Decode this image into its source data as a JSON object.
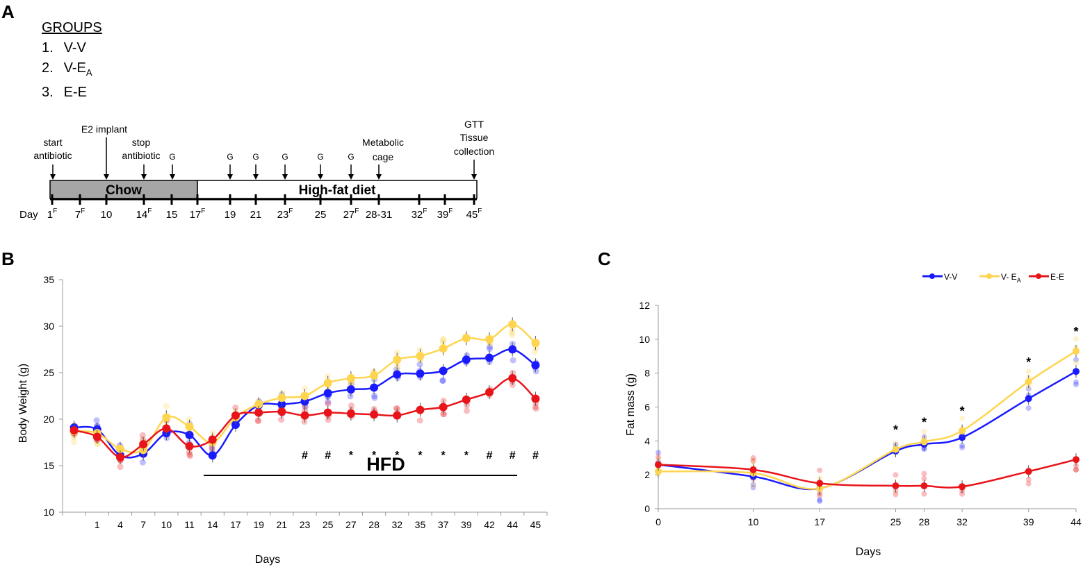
{
  "panels": {
    "a": "A",
    "b": "B",
    "c": "C"
  },
  "groups": {
    "header": "GROUPS",
    "items": [
      {
        "num": "1.",
        "label": "V-V"
      },
      {
        "num": "2.",
        "label": "V-E",
        "sub": "A"
      },
      {
        "num": "3.",
        "label": "E-E"
      }
    ]
  },
  "timeline": {
    "bar_labels": {
      "chow": "Chow",
      "hfd": "High-fat diet"
    },
    "day_prefix": "Day",
    "days": [
      {
        "d": "1",
        "f": true
      },
      {
        "d": "7",
        "f": true
      },
      {
        "d": "10",
        "f": false
      },
      {
        "d": "14",
        "f": true
      },
      {
        "d": "15",
        "f": false
      },
      {
        "d": "17",
        "f": true
      },
      {
        "d": "19",
        "f": false
      },
      {
        "d": "21",
        "f": false
      },
      {
        "d": "23",
        "f": true
      },
      {
        "d": "25",
        "f": false
      },
      {
        "d": "27",
        "f": true
      },
      {
        "d": "28-31",
        "f": false
      },
      {
        "d": "32",
        "f": true
      },
      {
        "d": "39",
        "f": true
      },
      {
        "d": "45",
        "f": true
      }
    ],
    "f_mark": "F",
    "events": {
      "start_antibiotic": [
        "start",
        "antibiotic"
      ],
      "e2_implant": [
        "E2 implant"
      ],
      "stop_antibiotic": [
        "stop",
        "antibiotic"
      ],
      "g": "G",
      "metabolic": [
        "Metabolic",
        "cage"
      ],
      "gtt": [
        "GTT",
        "Tissue",
        "collection"
      ]
    }
  },
  "chart_data": [
    {
      "type": "line",
      "id": "body-weight",
      "title": "",
      "xlabel": "Days",
      "ylabel": "Body Weight (g)",
      "ylim": [
        10,
        35
      ],
      "yticks": [
        10,
        15,
        20,
        25,
        30,
        35
      ],
      "categories": [
        "",
        "1",
        "4",
        "7",
        "10",
        "11",
        "14",
        "17",
        "19",
        "21",
        "23",
        "25",
        "27",
        "28",
        "32",
        "35",
        "37",
        "39",
        "42",
        "44",
        "45"
      ],
      "series": [
        {
          "name": "V-V",
          "color": "#1a1aff",
          "values": [
            19.1,
            18.9,
            16.1,
            16.3,
            18.5,
            18.3,
            16.1,
            19.4,
            21.5,
            21.6,
            21.9,
            22.8,
            23.2,
            23.4,
            24.8,
            24.9,
            25.2,
            26.4,
            26.6,
            27.5,
            25.8
          ]
        },
        {
          "name": "V- E_A",
          "color": "#ffd54f",
          "values": [
            18.7,
            18.5,
            16.8,
            16.7,
            20.2,
            19.2,
            17.5,
            20.2,
            21.6,
            22.3,
            22.5,
            23.9,
            24.4,
            24.7,
            26.4,
            26.8,
            27.6,
            28.7,
            28.6,
            30.2,
            28.2
          ]
        },
        {
          "name": "E-E",
          "color": "#e8141a",
          "values": [
            18.8,
            18.1,
            15.9,
            17.3,
            19.0,
            17.1,
            17.8,
            20.4,
            20.7,
            20.8,
            20.4,
            20.7,
            20.6,
            20.5,
            20.4,
            21.0,
            21.3,
            22.1,
            22.9,
            24.4,
            22.2
          ]
        }
      ],
      "annotations": [
        "#",
        "#",
        "*",
        "*",
        "*",
        "*",
        "*",
        "*",
        "#",
        "#",
        "#"
      ],
      "annotation_days": [
        "23",
        "25",
        "27",
        "28",
        "32",
        "35",
        "37",
        "39",
        "42",
        "44",
        "45"
      ],
      "bar_label": "HFD"
    },
    {
      "type": "line",
      "id": "fat-mass",
      "title": "",
      "xlabel": "Days",
      "ylabel": "Fat mass (g)",
      "ylim": [
        0,
        12
      ],
      "yticks": [
        0,
        2,
        4,
        6,
        8,
        10,
        12
      ],
      "x": [
        0,
        10,
        17,
        25,
        28,
        32,
        39,
        44
      ],
      "series": [
        {
          "name": "V-V",
          "color": "#1a1aff",
          "values": [
            2.6,
            1.9,
            1.2,
            3.4,
            3.8,
            4.2,
            6.5,
            8.1
          ]
        },
        {
          "name": "V- E_A",
          "color": "#ffd54f",
          "values": [
            2.2,
            2.1,
            1.2,
            3.5,
            3.95,
            4.6,
            7.5,
            9.3
          ]
        },
        {
          "name": "E-E",
          "color": "#e8141a",
          "values": [
            2.6,
            2.3,
            1.5,
            1.35,
            1.35,
            1.3,
            2.2,
            2.9
          ]
        }
      ],
      "annotations": [
        "*",
        "*",
        "*",
        "*",
        "*"
      ],
      "annotation_days": [
        25,
        28,
        32,
        39,
        44
      ],
      "legend": {
        "placement": "top-right",
        "entries": [
          {
            "label": "V-V"
          },
          {
            "label": "V- E",
            "sub": "A"
          },
          {
            "label": "E-E"
          }
        ]
      }
    }
  ]
}
